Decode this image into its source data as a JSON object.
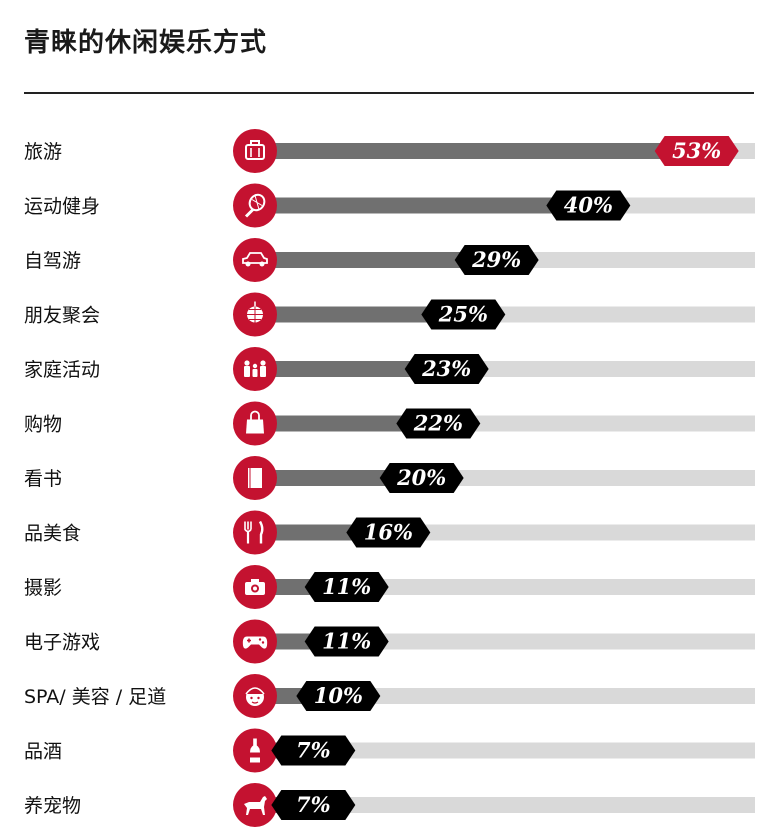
{
  "title": "青睐的休闲娱乐方式",
  "chart_data": {
    "type": "bar",
    "orientation": "horizontal",
    "title": "青睐的休闲娱乐方式",
    "unit": "%",
    "xlim": [
      0,
      60
    ],
    "categories": [
      "旅游",
      "运动健身",
      "自驾游",
      "朋友聚会",
      "家庭活动",
      "购物",
      "看书",
      "品美食",
      "摄影",
      "电子游戏",
      "SPA/ 美容 / 足道",
      "品酒",
      "养宠物"
    ],
    "values": [
      53,
      40,
      29,
      25,
      23,
      22,
      20,
      16,
      11,
      11,
      10,
      7,
      7
    ],
    "labels": [
      "53%",
      "40%",
      "29%",
      "25%",
      "23%",
      "22%",
      "20%",
      "16%",
      "11%",
      "11%",
      "10%",
      "7%",
      "7%"
    ],
    "icons": [
      "luggage-icon",
      "tennis-racket-icon",
      "car-icon",
      "disco-ball-icon",
      "family-icon",
      "shopping-bag-icon",
      "book-icon",
      "fork-knife-icon",
      "camera-icon",
      "gamepad-icon",
      "face-mask-icon",
      "wine-bottle-icon",
      "dog-icon"
    ],
    "highlight_index": 0
  },
  "colors": {
    "accent": "#c41230",
    "bar_fill": "#707070",
    "bar_track": "#d9d9d9",
    "tag": "#000000"
  }
}
